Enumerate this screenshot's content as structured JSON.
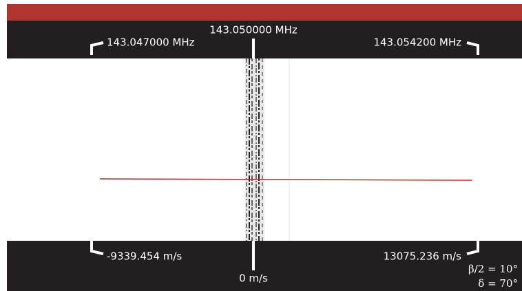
{
  "top_labels": {
    "center": "143.050000 MHz",
    "left": "143.047000 MHz",
    "right": "143.054200 MHz"
  },
  "bottom_labels": {
    "left": "-9339.454 m/s",
    "right": "13075.236 m/s",
    "center": "0 m/s"
  },
  "parameters": {
    "half_beam": "β/2 = 10°",
    "delta": "δ = 70°"
  }
}
